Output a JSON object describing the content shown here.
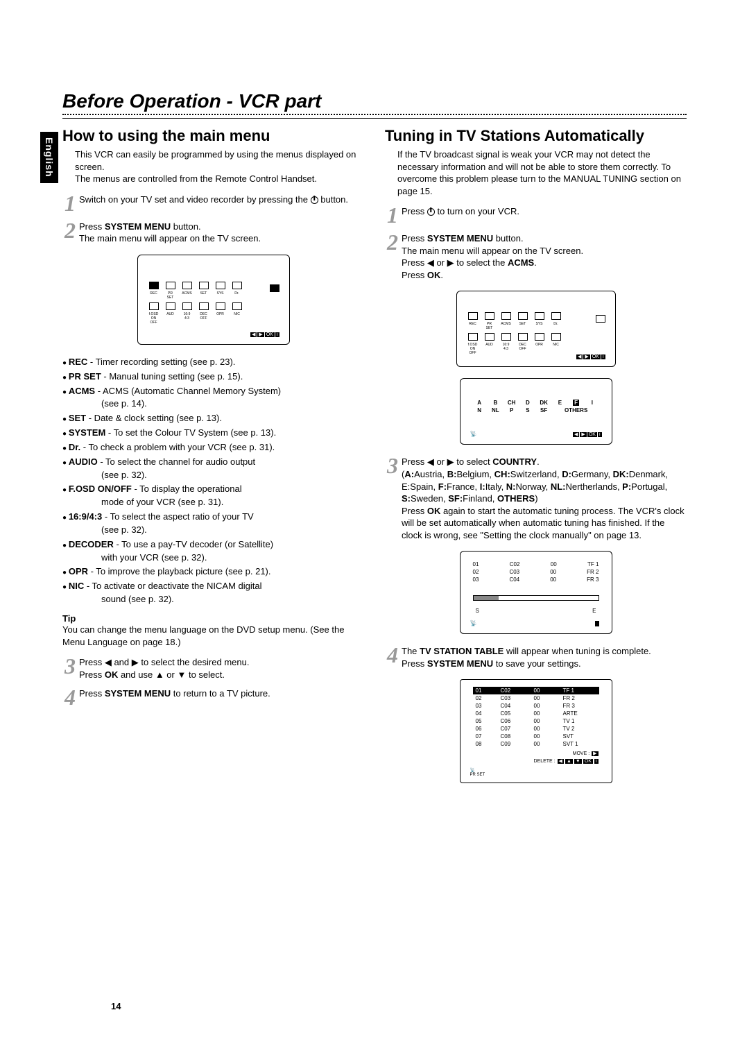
{
  "page_title": "Before Operation - VCR part",
  "sidebar_lang": "English",
  "page_number": "14",
  "left": {
    "title": "How to using the main menu",
    "intro": "This VCR can easily be programmed by using the menus displayed on screen.\nThe menus are controlled from the Remote Control Handset.",
    "step1": "Switch on your TV set and video recorder by pressing the",
    "step1_tail": "button.",
    "step2_a": "Press ",
    "step2_b": "SYSTEM MENU",
    "step2_c": " button.",
    "step2_d": "The main menu will appear on the TV screen.",
    "osd_labels_row1": [
      "REC",
      "PR SET",
      "ACMS",
      "SET",
      "SYS",
      "Dr."
    ],
    "osd_labels_row2": [
      "f.OSD ON OFF",
      "AUD",
      "16:9 4:3",
      "DEC OFF",
      "OPR",
      "NIC"
    ],
    "osd_nav": "◀ ▶ OK i",
    "bullets": [
      {
        "b": "REC",
        "t": " - Timer recording setting (see p. 23)."
      },
      {
        "b": "PR SET",
        "t": " - Manual tuning setting (see p. 15)."
      },
      {
        "b": "ACMS",
        "t": " - ACMS (Automatic Channel Memory System)",
        "c": "(see p. 14)."
      },
      {
        "b": "SET",
        "t": " - Date & clock setting (see p. 13)."
      },
      {
        "b": "SYSTEM",
        "t": " - To set the Colour TV System (see p. 13)."
      },
      {
        "b": "Dr.",
        "t": " - To check a problem with your VCR (see p. 31)."
      },
      {
        "b": "AUDIO",
        "t": " - To select the channel for audio output",
        "c": "(see p. 32)."
      },
      {
        "b": "F.OSD ON/OFF",
        "t": " - To display the operational",
        "c": "mode of your VCR (see p. 31)."
      },
      {
        "b": "16:9/4:3",
        "t": " - To select the aspect ratio of your TV",
        "c": "(see p. 32)."
      },
      {
        "b": "DECODER",
        "t": " - To use a pay-TV decoder (or Satellite)",
        "c": "with your VCR (see p. 32)."
      },
      {
        "b": "OPR",
        "t": " - To improve the playback picture (see p. 21)."
      },
      {
        "b": "NIC",
        "t": " - To activate or deactivate the NICAM digital",
        "c": "sound (see p. 32)."
      }
    ],
    "tip_label": "Tip",
    "tip_text": "You can change the menu language on the DVD setup menu. (See the Menu Language on page 18.)",
    "step3": "Press ◀ and ▶ to select the desired menu.\nPress OK and use ▲ or ▼ to select.",
    "step3_b1": "OK",
    "step4_a": "Press ",
    "step4_b": "SYSTEM MENU",
    "step4_c": " to return to a TV picture."
  },
  "right": {
    "title": "Tuning in TV Stations Automatically",
    "intro": "If the TV broadcast signal is weak your VCR may not detect the necessary information and will not be able to store them correctly. To overcome this problem please turn to the MANUAL TUNING section on page 15.",
    "step1_a": "Press ",
    "step1_b": " to turn on your VCR.",
    "step2_a": "Press ",
    "step2_b": "SYSTEM MENU",
    "step2_c": " button.",
    "step2_d": "The main menu will appear on the TV screen.",
    "step2_e": "Press ◀ or ▶ to select the ",
    "step2_f": "ACMS",
    "step2_g": ".",
    "step2_h": "Press ",
    "step2_i": "OK",
    "step2_j": ".",
    "countries_row1": [
      "A",
      "B",
      "CH",
      "D",
      "DK",
      "E",
      "F",
      "I"
    ],
    "countries_row2": [
      "N",
      "NL",
      "P",
      "S",
      "SF",
      "OTHERS"
    ],
    "country_highlight": "F",
    "step3_a": "Press ◀ or ▶ to select ",
    "step3_b": "COUNTRY",
    "step3_c": ".",
    "step3_d": "(A:Austria, B:Belgium, CH:Switzerland, D:Germany, DK:Denmark, E:Spain, F:France, I:Italy, N:Norway, NL:Nertherlands, P:Portugal, S:Sweden, SF:Finland, OTHERS)",
    "step3_bold_codes": [
      "A:",
      "B:",
      "CH:",
      "D:",
      "DK:",
      "F:",
      "I:",
      "N:",
      "NL:",
      "P:",
      "S:",
      "SF:",
      "OTHERS"
    ],
    "step3_e": "Press OK again to start the automatic tuning process. The VCR's clock will be set automatically when automatic tuning has finished. If the clock is wrong, see \"Setting the clock manually\" on page 13.",
    "step3_e_bold": "OK",
    "scan_rows": [
      [
        "01",
        "C02",
        "00",
        "TF 1"
      ],
      [
        "02",
        "C03",
        "00",
        "FR 2"
      ],
      [
        "03",
        "C04",
        "00",
        "FR 3"
      ]
    ],
    "scan_s": "S",
    "scan_e": "E",
    "step4_a": "The ",
    "step4_b": "TV STATION TABLE",
    "step4_c": " will appear when tuning is complete.",
    "step4_d": "Press ",
    "step4_e": "SYSTEM MENU",
    "step4_f": " to save your settings.",
    "table_rows": [
      [
        "01",
        "C02",
        "00",
        "TF 1"
      ],
      [
        "02",
        "C03",
        "00",
        "FR 2"
      ],
      [
        "03",
        "C04",
        "00",
        "FR 3"
      ],
      [
        "04",
        "C05",
        "00",
        "ARTE"
      ],
      [
        "05",
        "C06",
        "00",
        "TV 1"
      ],
      [
        "06",
        "C07",
        "00",
        "TV 2"
      ],
      [
        "07",
        "C08",
        "00",
        "SVT"
      ],
      [
        "08",
        "C09",
        "00",
        "SVT 1"
      ]
    ],
    "table_move": "MOVE :",
    "table_delete": "DELETE :",
    "table_keys": "◀ ▲ ▼ OK i",
    "table_prset": "PR SET"
  }
}
